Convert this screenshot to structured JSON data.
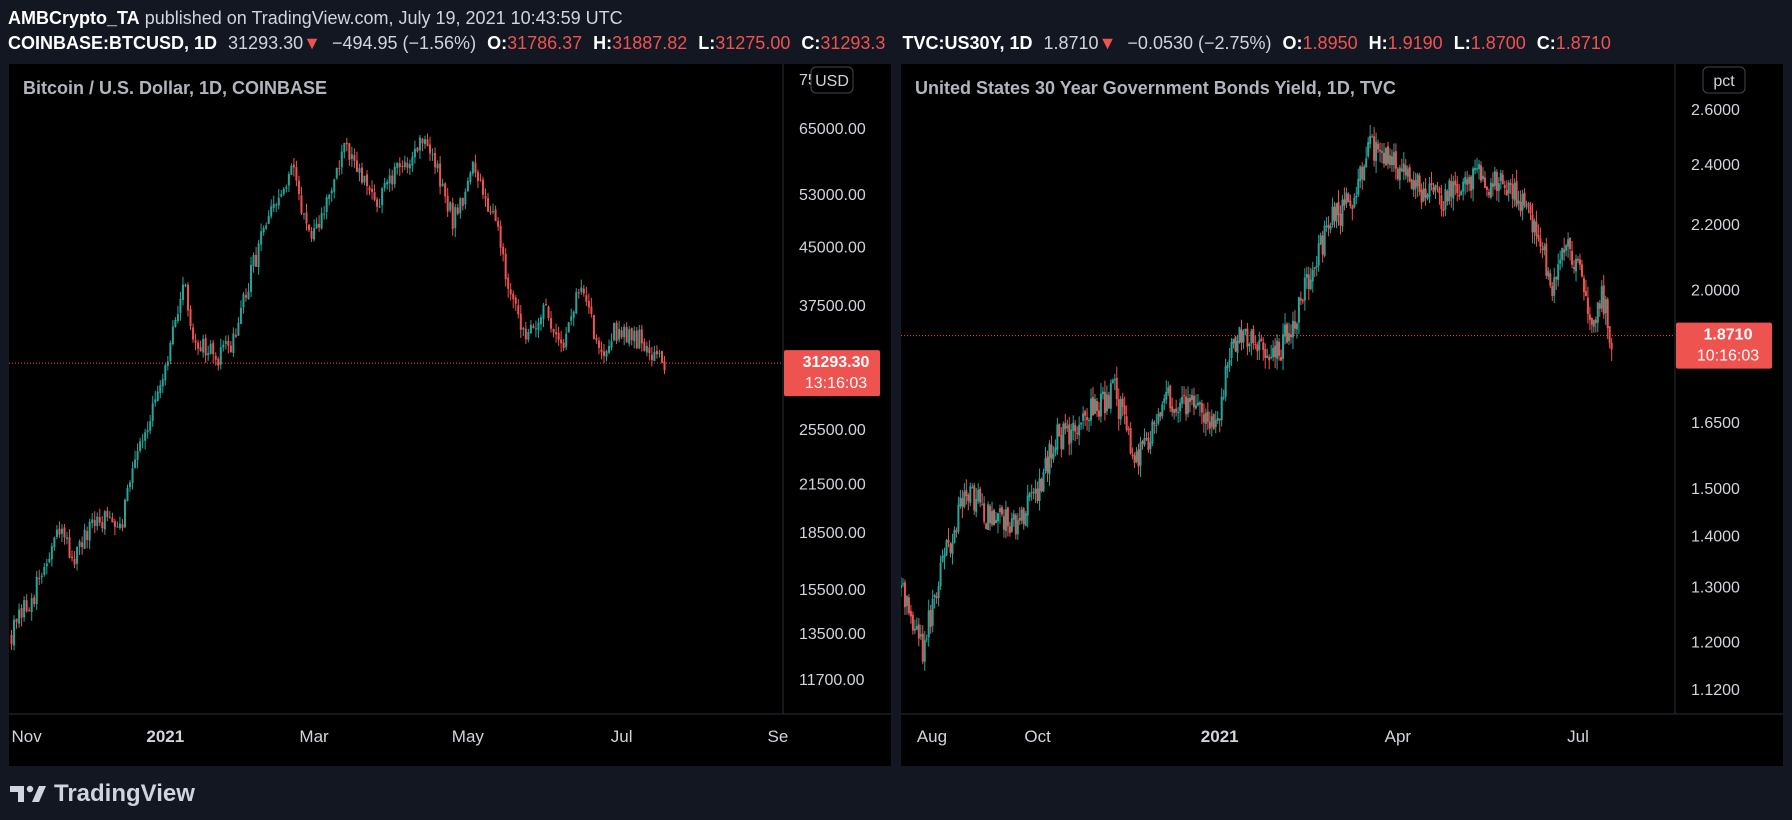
{
  "header": {
    "author": "AMBCrypto_TA",
    "published": "published on TradingView.com, July 19, 2021 10:43:59 UTC"
  },
  "left_quote": {
    "symbol": "COINBASE:BTCUSD, 1D",
    "last": "31293.30",
    "arrow": "▼",
    "change": "−494.95 (−1.56%)",
    "o_label": "O:",
    "o": "31786.37",
    "h_label": "H:",
    "h": "31887.82",
    "l_label": "L:",
    "l": "31275.00",
    "c_label": "C:",
    "c": "31293.3"
  },
  "right_quote": {
    "symbol": "TVC:US30Y, 1D",
    "last": "1.8710",
    "arrow": "▼",
    "change": "−0.0530 (−2.75%)",
    "o_label": "O:",
    "o": "1.8950",
    "h_label": "H:",
    "h": "1.9190",
    "l_label": "L:",
    "l": "1.8700",
    "c_label": "C:",
    "c": "1.8710"
  },
  "footer": {
    "brand": "TradingView"
  },
  "colors": {
    "up": "#26a69a",
    "down": "#ef5350",
    "price_tag": "#ef5350",
    "background": "#000000",
    "frame": "#131722"
  },
  "chart_data": [
    {
      "type": "candlestick",
      "title": "Bitcoin / U.S. Dollar, 1D, COINBASE",
      "unit_label": "USD",
      "scale": "log",
      "ylim": [
        10500,
        76000
      ],
      "y_ticks": [
        "65000.00",
        "53000.00",
        "45000.00",
        "37500.00",
        "31293.30",
        "25500.00",
        "21500.00",
        "18500.00",
        "15500.00",
        "13500.00",
        "11700.00"
      ],
      "y_tick_values": [
        65000,
        53000,
        45000,
        37500,
        25500,
        21500,
        18500,
        15500,
        13500,
        11700
      ],
      "partial_top_tick": "75",
      "x_ticks": [
        "Nov",
        "2021",
        "Mar",
        "May",
        "Jul",
        "Se"
      ],
      "x_tick_dates": [
        "2020-11-01",
        "2021-01-01",
        "2021-03-01",
        "2021-05-01",
        "2021-07-01",
        "2021-09-01"
      ],
      "x_range": [
        "2020-10-31",
        "2021-09-03"
      ],
      "last_price": 31293.3,
      "last_price_label": "31293.30",
      "countdown": "13:16:03",
      "trend_points": [
        [
          "2020-11-01",
          13500
        ],
        [
          "2020-11-10",
          15300
        ],
        [
          "2020-11-20",
          18500
        ],
        [
          "2020-11-26",
          17100
        ],
        [
          "2020-12-05",
          19200
        ],
        [
          "2020-12-15",
          19400
        ],
        [
          "2020-12-20",
          23800
        ],
        [
          "2020-12-31",
          29000
        ],
        [
          "2021-01-08",
          40500
        ],
        [
          "2021-01-12",
          34000
        ],
        [
          "2021-01-22",
          31500
        ],
        [
          "2021-01-29",
          34300
        ],
        [
          "2021-02-08",
          46500
        ],
        [
          "2021-02-21",
          57000
        ],
        [
          "2021-02-28",
          45000
        ],
        [
          "2021-03-13",
          61000
        ],
        [
          "2021-03-25",
          51500
        ],
        [
          "2021-04-14",
          63500
        ],
        [
          "2021-04-25",
          49000
        ],
        [
          "2021-05-03",
          57000
        ],
        [
          "2021-05-12",
          49500
        ],
        [
          "2021-05-19",
          37000
        ],
        [
          "2021-05-23",
          34700
        ],
        [
          "2021-06-01",
          36500
        ],
        [
          "2021-06-08",
          33500
        ],
        [
          "2021-06-15",
          40000
        ],
        [
          "2021-06-22",
          32500
        ],
        [
          "2021-06-30",
          35000
        ],
        [
          "2021-07-06",
          34000
        ],
        [
          "2021-07-13",
          32700
        ],
        [
          "2021-07-18",
          31300
        ]
      ]
    },
    {
      "type": "candlestick",
      "title": "United States 30 Year Government Bonds Yield, 1D, TVC",
      "unit_label": "pct",
      "scale": "log",
      "ylim": [
        1.08,
        2.72
      ],
      "y_ticks": [
        "2.6000",
        "2.4000",
        "2.2000",
        "2.0000",
        "1.8710",
        "1.6500",
        "1.5000",
        "1.4000",
        "1.3000",
        "1.2000",
        "1.1200"
      ],
      "y_tick_values": [
        2.6,
        2.4,
        2.2,
        2.0,
        1.65,
        1.5,
        1.4,
        1.3,
        1.2,
        1.12
      ],
      "x_ticks": [
        "Aug",
        "Oct",
        "2021",
        "Apr",
        "Jul"
      ],
      "x_tick_dates": [
        "2020-08-01",
        "2020-10-01",
        "2021-01-01",
        "2021-04-01",
        "2021-07-01"
      ],
      "x_range": [
        "2020-07-24",
        "2021-08-19"
      ],
      "last_price": 1.871,
      "last_price_label": "1.8710",
      "countdown": "10:16:03",
      "trend_points": [
        [
          "2020-07-24",
          1.3
        ],
        [
          "2020-08-04",
          1.19
        ],
        [
          "2020-08-10",
          1.28
        ],
        [
          "2020-08-20",
          1.42
        ],
        [
          "2020-08-27",
          1.5
        ],
        [
          "2020-09-05",
          1.44
        ],
        [
          "2020-09-20",
          1.43
        ],
        [
          "2020-10-01",
          1.48
        ],
        [
          "2020-10-10",
          1.61
        ],
        [
          "2020-10-20",
          1.63
        ],
        [
          "2020-10-30",
          1.69
        ],
        [
          "2020-11-09",
          1.72
        ],
        [
          "2020-11-20",
          1.56
        ],
        [
          "2020-12-05",
          1.7
        ],
        [
          "2020-12-20",
          1.68
        ],
        [
          "2020-12-31",
          1.65
        ],
        [
          "2021-01-08",
          1.86
        ],
        [
          "2021-01-20",
          1.84
        ],
        [
          "2021-01-29",
          1.81
        ],
        [
          "2021-02-10",
          1.95
        ],
        [
          "2021-02-25",
          2.2
        ],
        [
          "2021-03-10",
          2.3
        ],
        [
          "2021-03-18",
          2.45
        ],
        [
          "2021-03-30",
          2.39
        ],
        [
          "2021-04-10",
          2.32
        ],
        [
          "2021-04-22",
          2.28
        ],
        [
          "2021-05-10",
          2.37
        ],
        [
          "2021-05-20",
          2.33
        ],
        [
          "2021-06-01",
          2.29
        ],
        [
          "2021-06-10",
          2.18
        ],
        [
          "2021-06-18",
          2.0
        ],
        [
          "2021-06-24",
          2.14
        ],
        [
          "2021-07-02",
          2.05
        ],
        [
          "2021-07-08",
          1.88
        ],
        [
          "2021-07-13",
          1.98
        ],
        [
          "2021-07-18",
          1.87
        ]
      ]
    }
  ]
}
